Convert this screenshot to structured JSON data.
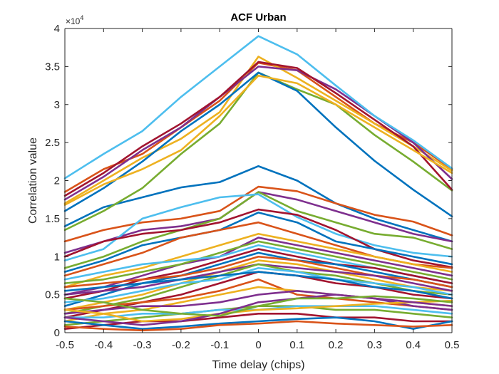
{
  "chart_data": {
    "type": "line",
    "title": "ACF Urban",
    "xlabel": "Time delay (chips)",
    "ylabel": "Correlation value",
    "y_exponent_base": "×10",
    "y_exponent_power": "4",
    "xlim": [
      -0.5,
      0.5
    ],
    "ylim": [
      0,
      40000
    ],
    "grid": false,
    "legend": "none",
    "x": [
      -0.5,
      -0.4,
      -0.3,
      -0.2,
      -0.1,
      0,
      0.1,
      0.2,
      0.3,
      0.4,
      0.5
    ],
    "x_tick_labels": [
      "-0.5",
      "-0.4",
      "-0.3",
      "-0.2",
      "-0.1",
      "0",
      "0.1",
      "0.2",
      "0.3",
      "0.4",
      "0.5"
    ],
    "y_ticks": [
      0,
      5000,
      10000,
      15000,
      20000,
      25000,
      30000,
      35000,
      40000
    ],
    "y_tick_labels": [
      "0",
      "0.5",
      "1",
      "1.5",
      "2",
      "2.5",
      "3",
      "3.5",
      "4"
    ],
    "color_cycle": [
      "#0072BD",
      "#D95319",
      "#EDB120",
      "#7E2F8E",
      "#77AC30",
      "#4DBEEE",
      "#A2142F"
    ],
    "series": [
      {
        "values": [
          14000,
          16500,
          17800,
          19100,
          19800,
          21900,
          20000,
          17000,
          15000,
          13500,
          12000
        ]
      },
      {
        "values": [
          18500,
          21500,
          23500,
          27000,
          30500,
          35500,
          34500,
          31000,
          27500,
          25000,
          21500
        ]
      },
      {
        "values": [
          17000,
          20000,
          23000,
          25500,
          29000,
          36300,
          33500,
          30500,
          27500,
          24500,
          21300
        ]
      },
      {
        "values": [
          17500,
          20500,
          24000,
          27000,
          31000,
          35000,
          34500,
          32000,
          28500,
          25000,
          20200
        ]
      },
      {
        "values": [
          13500,
          16000,
          19000,
          23500,
          27500,
          34200,
          32000,
          30000,
          26000,
          22500,
          18700
        ]
      },
      {
        "values": [
          20300,
          23500,
          26500,
          31000,
          35000,
          39000,
          36600,
          32500,
          28500,
          25300,
          21600
        ]
      },
      {
        "values": [
          18000,
          21000,
          24500,
          27500,
          31000,
          35600,
          34800,
          31500,
          28000,
          24500,
          18800
        ]
      },
      {
        "values": [
          16000,
          19000,
          22500,
          26500,
          30000,
          34200,
          31800,
          27000,
          22600,
          18800,
          15300
        ]
      },
      {
        "values": [
          12000,
          13500,
          14500,
          15000,
          16000,
          19200,
          18600,
          17000,
          15500,
          14600,
          12800
        ]
      },
      {
        "values": [
          16800,
          19500,
          21500,
          24000,
          28500,
          33800,
          32800,
          30000,
          27000,
          24000,
          21000
        ]
      },
      {
        "values": [
          10500,
          12000,
          13500,
          14000,
          15000,
          18500,
          17500,
          16000,
          14500,
          13000,
          12000
        ]
      },
      {
        "values": [
          8500,
          10000,
          12000,
          13500,
          15000,
          18500,
          16000,
          14500,
          13000,
          12500,
          11000
        ]
      },
      {
        "values": [
          9500,
          11000,
          15000,
          16500,
          17800,
          18200,
          15200,
          13000,
          11500,
          10500,
          10000
        ]
      },
      {
        "values": [
          10000,
          12000,
          13000,
          13500,
          14500,
          16200,
          15500,
          13500,
          11000,
          9500,
          8600
        ]
      },
      {
        "values": [
          8000,
          9500,
          11500,
          12500,
          13500,
          15800,
          14500,
          12000,
          11000,
          10000,
          9000
        ]
      },
      {
        "values": [
          7500,
          9000,
          10500,
          12500,
          13500,
          14500,
          13000,
          11500,
          10000,
          9000,
          8500
        ]
      },
      {
        "values": [
          6000,
          7500,
          8500,
          10000,
          11500,
          13000,
          12000,
          11000,
          10000,
          9000,
          8000
        ]
      },
      {
        "values": [
          5000,
          6000,
          7500,
          9000,
          10000,
          12500,
          11500,
          10500,
          9500,
          8500,
          7500
        ]
      },
      {
        "values": [
          6500,
          7000,
          8000,
          9000,
          10500,
          12000,
          11000,
          10000,
          9000,
          8000,
          7000
        ]
      },
      {
        "values": [
          7000,
          8000,
          9000,
          9500,
          10000,
          11500,
          10500,
          9500,
          8500,
          7500,
          6500
        ]
      },
      {
        "values": [
          4500,
          5500,
          7000,
          8000,
          9500,
          11000,
          10000,
          9000,
          8500,
          7500,
          6500
        ]
      },
      {
        "values": [
          3500,
          5000,
          6500,
          7500,
          9000,
          10500,
          9500,
          9000,
          8000,
          7000,
          6000
        ]
      },
      {
        "values": [
          6000,
          6500,
          7000,
          7500,
          8500,
          10000,
          9500,
          8500,
          7500,
          7000,
          6000
        ]
      },
      {
        "values": [
          3000,
          4000,
          5000,
          6500,
          8000,
          9500,
          9000,
          8000,
          7000,
          6000,
          5500
        ]
      },
      {
        "values": [
          5000,
          5500,
          6000,
          7000,
          8000,
          9000,
          8500,
          8000,
          7500,
          6500,
          5500
        ]
      },
      {
        "values": [
          2500,
          3500,
          4500,
          6000,
          7500,
          9000,
          8000,
          7500,
          6500,
          5500,
          5000
        ]
      },
      {
        "values": [
          4000,
          4500,
          5500,
          6500,
          7000,
          8500,
          8000,
          7000,
          6500,
          6000,
          5000
        ]
      },
      {
        "values": [
          2000,
          3000,
          4000,
          5000,
          6500,
          8000,
          7500,
          6500,
          6000,
          5000,
          4500
        ]
      },
      {
        "values": [
          5500,
          6000,
          6500,
          7000,
          7500,
          8000,
          7500,
          7000,
          6000,
          5500,
          4500
        ]
      },
      {
        "values": [
          3000,
          3500,
          4000,
          4500,
          5500,
          7000,
          5000,
          4500,
          4000,
          3500,
          3000
        ]
      },
      {
        "values": [
          1500,
          2500,
          3000,
          4000,
          5000,
          6000,
          5500,
          5000,
          4500,
          4000,
          3500
        ]
      },
      {
        "values": [
          2500,
          3000,
          3500,
          3500,
          4000,
          5000,
          5500,
          5000,
          4500,
          3500,
          3000
        ]
      },
      {
        "values": [
          1000,
          1500,
          2000,
          2500,
          3000,
          3500,
          3500,
          3000,
          3000,
          2500,
          2000
        ]
      },
      {
        "values": [
          2000,
          2000,
          2500,
          2500,
          3000,
          3000,
          3500,
          3500,
          3500,
          3000,
          2500
        ]
      },
      {
        "values": [
          500,
          1000,
          1500,
          1500,
          2000,
          2500,
          2500,
          2000,
          2000,
          1500,
          1500
        ]
      },
      {
        "values": [
          1500,
          1000,
          500,
          800,
          1200,
          1500,
          1800,
          2000,
          1500,
          500,
          1500
        ]
      },
      {
        "values": [
          800,
          500,
          300,
          500,
          1000,
          1200,
          1500,
          1200,
          1000,
          800,
          1000
        ]
      },
      {
        "values": [
          3000,
          2500,
          1500,
          1800,
          2500,
          3000,
          3200,
          3500,
          3800,
          4000,
          4200
        ]
      },
      {
        "values": [
          2000,
          1500,
          1000,
          1500,
          2500,
          4000,
          4500,
          5000,
          4500,
          4000,
          3500
        ]
      },
      {
        "values": [
          4500,
          4000,
          3000,
          2500,
          2200,
          3500,
          4500,
          4500,
          4800,
          4500,
          4000
        ]
      }
    ]
  }
}
